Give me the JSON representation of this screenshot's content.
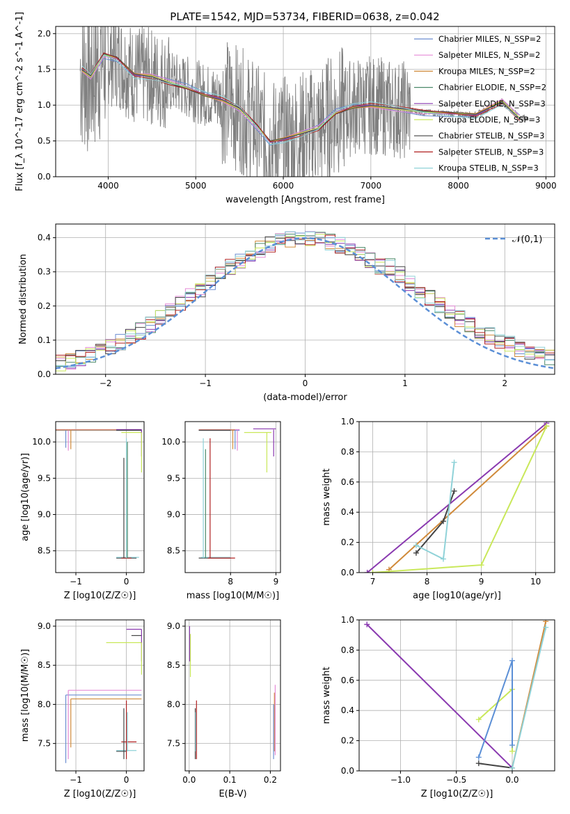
{
  "title": "PLATE=1542, MJD=53734, FIBERID=0638, z=0.042",
  "colors": {
    "spectrum": "#808080",
    "gaussian": "#5b8fd6",
    "models": [
      "#6a8cd0",
      "#e58ad6",
      "#d08a3a",
      "#4c8a6a",
      "#8a3ab0",
      "#c9e85a",
      "#444444",
      "#b02020",
      "#8fd2d8"
    ]
  },
  "legend": [
    "Chabrier MILES, N_SSP=2",
    "Salpeter MILES, N_SSP=2",
    "Kroupa MILES, N_SSP=2",
    "Chabrier ELODIE, N_SSP=2",
    "Salpeter ELODIE, N_SSP=3",
    "Kroupa ELODIE, N_SSP=3",
    "Chabrier STELIB, N_SSP=3",
    "Salpeter STELIB, N_SSP=3",
    "Kroupa STELIB, N_SSP=3"
  ],
  "chart_data": [
    {
      "id": "spectrum",
      "type": "line",
      "xlabel": "wavelength [Angstrom, rest frame]",
      "ylabel": "Flux [f_λ 10^-17 erg cm^-2 s^-1 A^-1]",
      "xlim": [
        3400,
        9100
      ],
      "ylim": [
        0,
        2.1
      ],
      "xticks": [
        4000,
        5000,
        6000,
        7000,
        8000,
        9000
      ],
      "yticks": [
        0.0,
        0.5,
        1.0,
        1.5,
        2.0
      ],
      "model_x": [
        3700,
        3800,
        3950,
        4100,
        4300,
        4500,
        4700,
        4900,
        5100,
        5300,
        5500,
        5700,
        5850,
        6000,
        6200,
        6400,
        6600,
        6800,
        7000,
        7300,
        7600,
        7900,
        8200,
        8500,
        8700
      ],
      "model_y": [
        1.5,
        1.4,
        1.7,
        1.65,
        1.42,
        1.4,
        1.32,
        1.25,
        1.15,
        1.08,
        0.95,
        0.7,
        0.48,
        0.52,
        0.6,
        0.68,
        0.9,
        0.98,
        1.0,
        0.95,
        0.9,
        0.88,
        0.86,
        1.05,
        0.82
      ]
    },
    {
      "id": "residuals",
      "type": "step",
      "xlabel": "(data-model)/error",
      "ylabel": "Normed distribution",
      "xlim": [
        -2.5,
        2.5
      ],
      "ylim": [
        0,
        0.44
      ],
      "xticks": [
        -2,
        -1,
        0,
        1,
        2
      ],
      "yticks": [
        0.0,
        0.1,
        0.2,
        0.3,
        0.4
      ],
      "gaussian_label": "𝒩(0,1)"
    },
    {
      "id": "age-Z",
      "type": "scatter",
      "xlabel": "Z [log10(Z/Z☉)]",
      "ylabel": "age [log10(age/yr)]",
      "xlim": [
        -1.4,
        0.35
      ],
      "ylim": [
        8.2,
        10.28
      ],
      "xticks": [
        -1,
        0
      ],
      "yticks": [
        8.5,
        9.0,
        9.5,
        10.0
      ]
    },
    {
      "id": "age-mass",
      "type": "scatter",
      "xlabel": "mass [log10(M/M☉)]",
      "ylabel": "",
      "xlim": [
        7.0,
        9.1
      ],
      "ylim": [
        8.2,
        10.28
      ],
      "xticks": [
        8,
        9
      ],
      "yticks": [
        8.5,
        9.0,
        9.5,
        10.0
      ]
    },
    {
      "id": "weight-age",
      "type": "line",
      "xlabel": "age [log10(age/yr)]",
      "ylabel": "mass weight",
      "xlim": [
        6.75,
        10.35
      ],
      "ylim": [
        0,
        1.0
      ],
      "xticks": [
        7,
        8,
        9,
        10
      ],
      "yticks": [
        0.0,
        0.2,
        0.4,
        0.6,
        0.8,
        1.0
      ],
      "series": [
        {
          "x": [
            6.9,
            10.2
          ],
          "y": [
            0.0,
            0.99
          ]
        },
        {
          "x": [
            7.3,
            10.2
          ],
          "y": [
            0.02,
            0.97
          ]
        },
        {
          "x": [
            7.8,
            8.3,
            8.5
          ],
          "y": [
            0.13,
            0.34,
            0.54
          ]
        },
        {
          "x": [
            7.8,
            8.3,
            8.5
          ],
          "y": [
            0.18,
            0.09,
            0.73
          ]
        },
        {
          "x": [
            7.0,
            9.0,
            10.2
          ],
          "y": [
            0.0,
            0.05,
            0.97
          ]
        }
      ]
    },
    {
      "id": "mass-Z",
      "type": "scatter",
      "xlabel": "Z [log10(Z/Z☉)]",
      "ylabel": "mass [log10(M/M☉)]",
      "xlim": [
        -1.4,
        0.35
      ],
      "ylim": [
        7.15,
        9.08
      ],
      "xticks": [
        -1,
        0
      ],
      "yticks": [
        7.5,
        8.0,
        8.5,
        9.0
      ]
    },
    {
      "id": "mass-EBV",
      "type": "scatter",
      "xlabel": "E(B-V)",
      "ylabel": "",
      "xlim": [
        -0.01,
        0.225
      ],
      "ylim": [
        7.15,
        9.08
      ],
      "xticks": [
        0.0,
        0.1,
        0.2
      ],
      "yticks": [
        7.5,
        8.0,
        8.5,
        9.0
      ]
    },
    {
      "id": "weight-Z",
      "type": "line",
      "xlabel": "Z [log10(Z/Z☉)]",
      "ylabel": "mass weight",
      "xlim": [
        -1.37,
        0.38
      ],
      "ylim": [
        0,
        1.0
      ],
      "xticks": [
        -1.0,
        -0.5,
        0.0
      ],
      "yticks": [
        0.0,
        0.2,
        0.4,
        0.6,
        0.8,
        1.0
      ],
      "series": [
        {
          "x": [
            -1.3,
            0.0
          ],
          "y": [
            0.97,
            0.02
          ]
        },
        {
          "x": [
            0.0,
            0.3
          ],
          "y": [
            0.02,
            0.99
          ]
        },
        {
          "x": [
            -0.3,
            0.0
          ],
          "y": [
            0.05,
            0.02
          ]
        },
        {
          "x": [
            0.0,
            0.3
          ],
          "y": [
            0.02,
            0.95
          ]
        },
        {
          "x": [
            -0.3,
            0.0,
            0.0
          ],
          "y": [
            0.34,
            0.54,
            0.13
          ]
        },
        {
          "x": [
            -0.3,
            0.0,
            0.0
          ],
          "y": [
            0.09,
            0.73,
            0.17
          ]
        }
      ]
    }
  ]
}
